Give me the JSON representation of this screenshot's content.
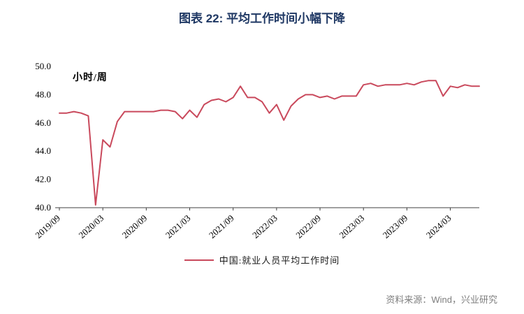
{
  "chart_data": {
    "type": "line",
    "title": "图表 22: 平均工作时间小幅下降",
    "unit_label": "小时/周",
    "legend": "中国:就业人员平均工作时间",
    "source": "资料来源：Wind，兴业研究",
    "line_color": "#C9495C",
    "title_color": "#1F3864",
    "ylim": [
      40.0,
      50.0
    ],
    "yticks": [
      40.0,
      42.0,
      44.0,
      46.0,
      48.0,
      50.0
    ],
    "xtick_labels": [
      "2019/09",
      "2020/03",
      "2020/09",
      "2021/03",
      "2021/09",
      "2022/03",
      "2022/09",
      "2023/03",
      "2023/09",
      "2024/03"
    ],
    "xtick_indices": [
      0,
      6,
      12,
      18,
      24,
      30,
      36,
      42,
      48,
      54
    ],
    "x": [
      "2019/09",
      "2019/10",
      "2019/11",
      "2019/12",
      "2020/01",
      "2020/02",
      "2020/03",
      "2020/04",
      "2020/05",
      "2020/06",
      "2020/07",
      "2020/08",
      "2020/09",
      "2020/10",
      "2020/11",
      "2020/12",
      "2021/01",
      "2021/02",
      "2021/03",
      "2021/04",
      "2021/05",
      "2021/06",
      "2021/07",
      "2021/08",
      "2021/09",
      "2021/10",
      "2021/11",
      "2021/12",
      "2022/01",
      "2022/02",
      "2022/03",
      "2022/04",
      "2022/05",
      "2022/06",
      "2022/07",
      "2022/08",
      "2022/09",
      "2022/10",
      "2022/11",
      "2022/12",
      "2023/01",
      "2023/02",
      "2023/03",
      "2023/04",
      "2023/05",
      "2023/06",
      "2023/07",
      "2023/08",
      "2023/09",
      "2023/10",
      "2023/11",
      "2023/12",
      "2024/01",
      "2024/02",
      "2024/03",
      "2024/04",
      "2024/05",
      "2024/06",
      "2024/07"
    ],
    "values": [
      46.7,
      46.7,
      46.8,
      46.7,
      46.5,
      40.2,
      44.8,
      44.3,
      46.1,
      46.8,
      46.8,
      46.8,
      46.8,
      46.8,
      46.9,
      46.9,
      46.8,
      46.3,
      46.9,
      46.4,
      47.3,
      47.6,
      47.7,
      47.5,
      47.8,
      48.6,
      47.8,
      47.8,
      47.5,
      46.7,
      47.3,
      46.2,
      47.2,
      47.7,
      48.0,
      48.0,
      47.8,
      47.9,
      47.7,
      47.9,
      47.9,
      47.9,
      48.7,
      48.8,
      48.6,
      48.7,
      48.7,
      48.7,
      48.8,
      48.7,
      48.9,
      49.0,
      49.0,
      47.9,
      48.6,
      48.5,
      48.7,
      48.6,
      48.6
    ],
    "grid": false,
    "legend_position": "bottom"
  }
}
